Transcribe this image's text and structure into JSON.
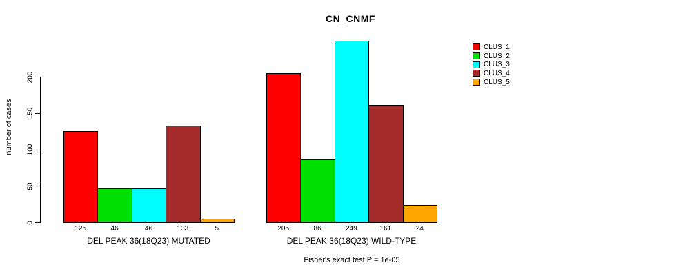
{
  "chart_data": {
    "type": "bar",
    "title": "CN_CNMF",
    "ylabel": "number of cases",
    "xlabel": "",
    "ylim": [
      0,
      250
    ],
    "yticks": [
      0,
      50,
      100,
      150,
      200
    ],
    "grid": false,
    "legend_position": "right",
    "series": [
      {
        "name": "CLUS_1",
        "color": "#FF0000"
      },
      {
        "name": "CLUS_2",
        "color": "#00E000"
      },
      {
        "name": "CLUS_3",
        "color": "#00FFFF"
      },
      {
        "name": "CLUS_4",
        "color": "#A52A2A"
      },
      {
        "name": "CLUS_5",
        "color": "#FFA500"
      }
    ],
    "groups": [
      {
        "label": "DEL PEAK 36(18Q23) MUTATED",
        "values": [
          125,
          46,
          46,
          133,
          5
        ],
        "bar_value_labels": [
          "125",
          "46",
          "46",
          "133",
          "5"
        ]
      },
      {
        "label": "DEL PEAK 36(18Q23) WILD-TYPE",
        "values": [
          205,
          86,
          249,
          161,
          24
        ],
        "bar_value_labels": [
          "205",
          "86",
          "249",
          "161",
          "24"
        ]
      }
    ],
    "annotation": "Fisher's exact test P = 1e-05"
  }
}
